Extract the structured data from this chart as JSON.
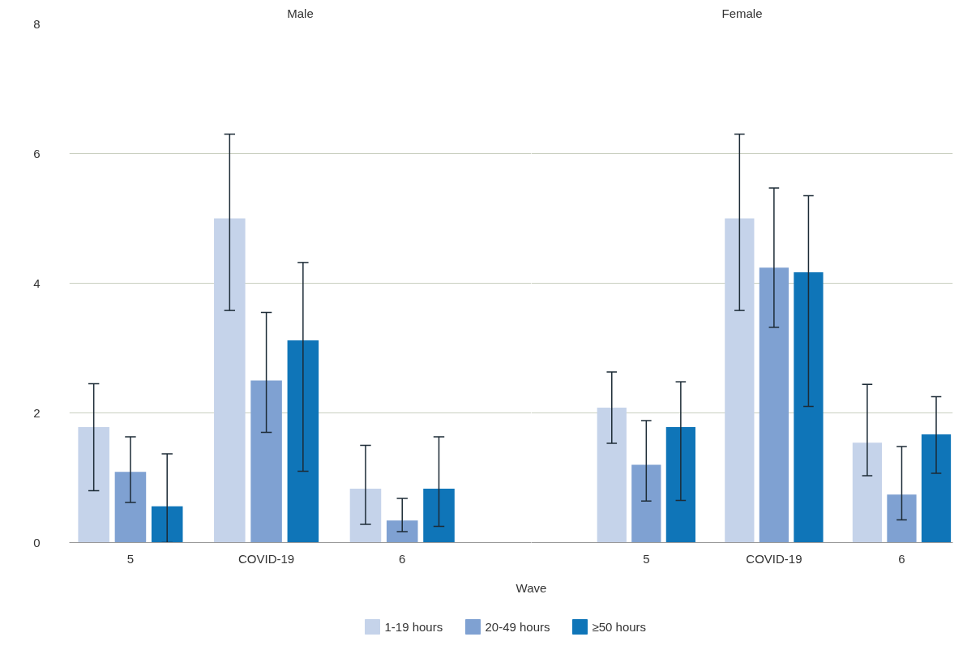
{
  "chart_data": [
    {
      "type": "bar",
      "title": "Male",
      "xlabel": "Wave",
      "categories": [
        "5",
        "COVID-19",
        "6"
      ],
      "ylim": [
        0,
        8
      ],
      "yticks": [
        0,
        2,
        4,
        6,
        8
      ],
      "grid": "y",
      "legend": "bottom",
      "series": [
        {
          "name": "1-19 hours",
          "color": "#c5d3ea",
          "values": [
            1.78,
            5.0,
            0.83
          ],
          "errors": [
            [
              0.8,
              2.45
            ],
            [
              3.58,
              6.3
            ],
            [
              0.28,
              1.5
            ]
          ]
        },
        {
          "name": "20-49 hours",
          "color": "#7fa1d2",
          "values": [
            1.09,
            2.5,
            0.34
          ],
          "errors": [
            [
              0.62,
              1.63
            ],
            [
              1.7,
              3.55
            ],
            [
              0.17,
              0.68
            ]
          ]
        },
        {
          "name": "≥50 hours",
          "color": "#0f75b8",
          "values": [
            0.56,
            3.12,
            0.83
          ],
          "errors": [
            [
              0.0,
              1.37
            ],
            [
              1.1,
              4.32
            ],
            [
              0.25,
              1.63
            ]
          ]
        }
      ]
    },
    {
      "type": "bar",
      "title": "Female",
      "categories": [
        "5",
        "COVID-19",
        "6"
      ],
      "ylim": [
        0,
        8
      ],
      "yticks": [
        0,
        2,
        4,
        6,
        8
      ],
      "grid": "y",
      "tick_labels": "x",
      "series": [
        {
          "color": "#c5d3ea",
          "values": [
            2.08,
            5.0,
            1.54
          ],
          "errors": [
            [
              1.53,
              2.63
            ],
            [
              3.58,
              6.3
            ],
            [
              1.03,
              2.44
            ]
          ]
        },
        {
          "color": "#7fa1d2",
          "values": [
            1.2,
            4.24,
            0.74
          ],
          "errors": [
            [
              0.64,
              1.88
            ],
            [
              3.32,
              5.47
            ],
            [
              0.35,
              1.48
            ]
          ]
        },
        {
          "color": "#0f75b8",
          "values": [
            1.78,
            4.17,
            1.67
          ],
          "errors": [
            [
              0.65,
              2.48
            ],
            [
              2.1,
              5.35
            ],
            [
              1.07,
              2.25
            ]
          ]
        }
      ]
    }
  ]
}
